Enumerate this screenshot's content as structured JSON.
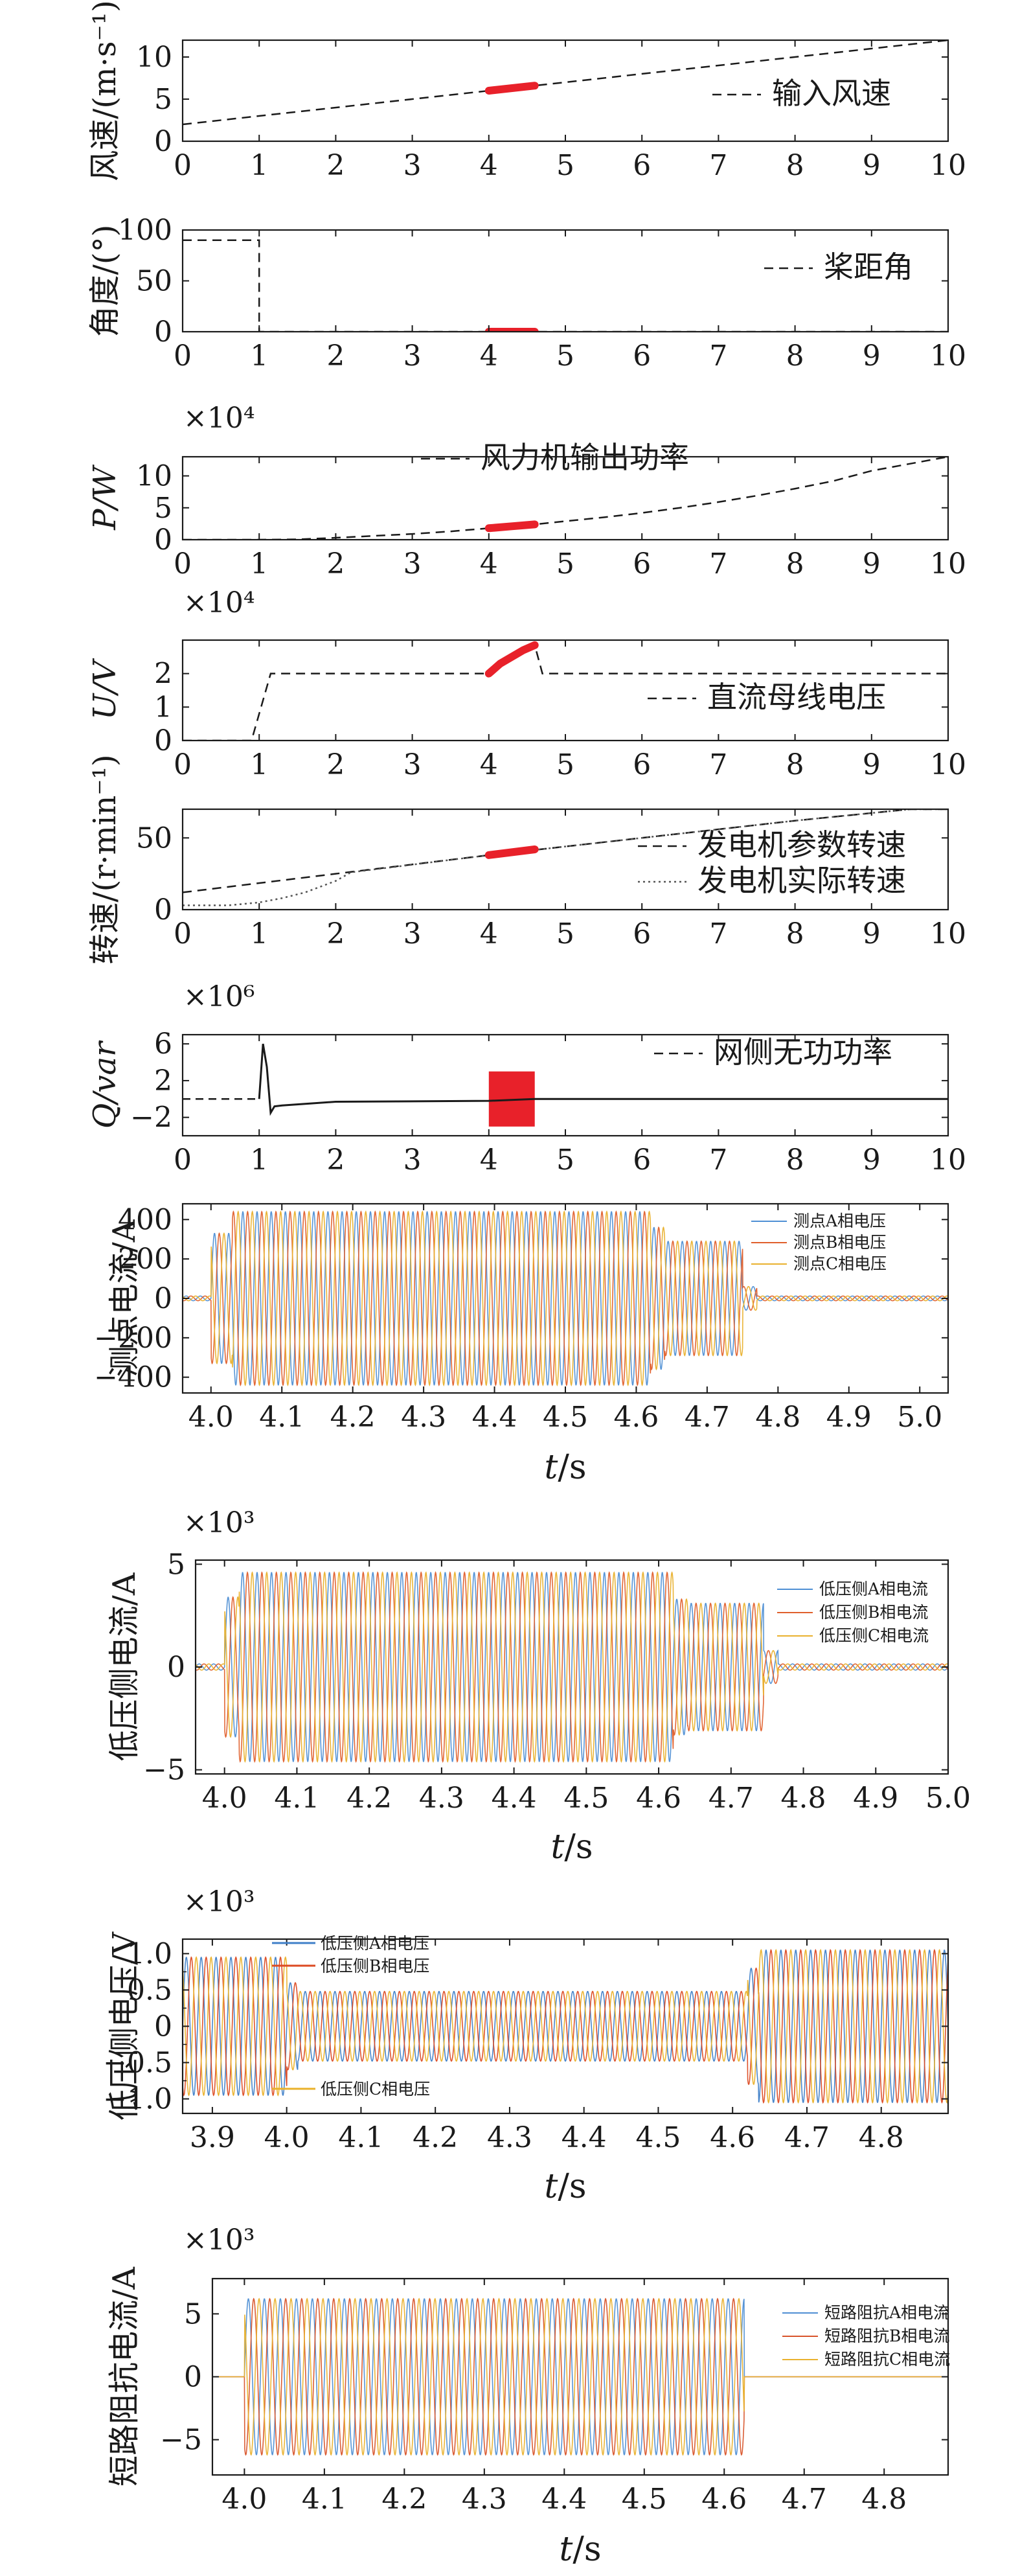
{
  "charts": [
    {
      "id": "wind",
      "type": "line",
      "ylabel": "风速/(m·s⁻¹)",
      "xlim": [
        0,
        10
      ],
      "ylim": [
        0,
        12
      ],
      "xticks": [
        0,
        1,
        2,
        3,
        4,
        5,
        6,
        7,
        8,
        9,
        10
      ],
      "yticks": [
        0,
        5,
        10
      ],
      "xticklabels": [
        "0",
        "1",
        "2",
        "3",
        "4",
        "5",
        "6",
        "7",
        "8",
        "9",
        "10"
      ],
      "yticklabels": [
        "0",
        "5",
        "10"
      ],
      "multiplier": "",
      "series": [
        {
          "name": "输入风速",
          "style": "dashed",
          "color": "#1a1a1a",
          "x": [
            0,
            10
          ],
          "y": [
            2,
            12
          ]
        }
      ],
      "highlight": {
        "color": "#e8212a",
        "x": [
          4,
          4.6
        ],
        "y": [
          6,
          6.6
        ]
      }
    },
    {
      "id": "pitch",
      "type": "line",
      "ylabel": "角度/(°)",
      "xlim": [
        0,
        10
      ],
      "ylim": [
        0,
        100
      ],
      "xticks": [
        0,
        1,
        2,
        3,
        4,
        5,
        6,
        7,
        8,
        9,
        10
      ],
      "yticks": [
        0,
        50,
        100
      ],
      "xticklabels": [
        "0",
        "1",
        "2",
        "3",
        "4",
        "5",
        "6",
        "7",
        "8",
        "9",
        "10"
      ],
      "yticklabels": [
        "0",
        "50",
        "100"
      ],
      "multiplier": "",
      "series": [
        {
          "name": "桨距角",
          "style": "dashed",
          "color": "#1a1a1a",
          "x": [
            0,
            1,
            1,
            10
          ],
          "y": [
            90,
            90,
            0,
            0
          ]
        }
      ],
      "highlight": {
        "color": "#e8212a",
        "x": [
          4,
          4.6
        ],
        "y": [
          0,
          0
        ]
      }
    },
    {
      "id": "power",
      "type": "line",
      "ylabel": "P/W",
      "xlim": [
        0,
        10
      ],
      "ylim": [
        0,
        13
      ],
      "xticks": [
        0,
        1,
        2,
        3,
        4,
        5,
        6,
        7,
        8,
        9,
        10
      ],
      "yticks": [
        0,
        5,
        10
      ],
      "xticklabels": [
        "0",
        "1",
        "2",
        "3",
        "4",
        "5",
        "6",
        "7",
        "8",
        "9",
        "10"
      ],
      "yticklabels": [
        "0",
        "5",
        "10"
      ],
      "multiplier": "×10⁴",
      "series": [
        {
          "name": "风力机输出功率",
          "style": "dashed",
          "color": "#1a1a1a",
          "x": [
            0,
            1,
            1.5,
            2,
            2.5,
            3,
            3.5,
            4,
            4.6,
            5,
            5.5,
            6,
            6.5,
            7,
            7.5,
            8,
            8.5,
            9,
            9.5,
            10
          ],
          "y": [
            0,
            0,
            0.05,
            0.3,
            0.6,
            0.9,
            1.3,
            1.8,
            2.4,
            2.9,
            3.5,
            4.2,
            5.0,
            5.9,
            6.9,
            8.0,
            9.2,
            10.8,
            11.9,
            13
          ]
        }
      ],
      "highlight": {
        "color": "#e8212a",
        "x": [
          4,
          4.3,
          4.6
        ],
        "y": [
          1.8,
          2.1,
          2.4
        ]
      }
    },
    {
      "id": "dcbus",
      "type": "line",
      "ylabel": "U/V",
      "xlim": [
        0,
        10
      ],
      "ylim": [
        0,
        3
      ],
      "xticks": [
        0,
        1,
        2,
        3,
        4,
        5,
        6,
        7,
        8,
        9,
        10
      ],
      "yticks": [
        0,
        1,
        2
      ],
      "xticklabels": [
        "0",
        "1",
        "2",
        "3",
        "4",
        "5",
        "6",
        "7",
        "8",
        "9",
        "10"
      ],
      "yticklabels": [
        "0",
        "1",
        "2"
      ],
      "multiplier": "×10⁴",
      "series": [
        {
          "name": "直流母线电压",
          "style": "dashed",
          "color": "#1a1a1a",
          "x": [
            0,
            0.9,
            1.15,
            4,
            4.6,
            4.7,
            10
          ],
          "y": [
            0,
            0,
            2,
            2,
            2.85,
            2,
            2
          ]
        }
      ],
      "highlight": {
        "color": "#e8212a",
        "x": [
          4,
          4.15,
          4.3,
          4.45,
          4.6
        ],
        "y": [
          2.0,
          2.3,
          2.5,
          2.7,
          2.85
        ]
      }
    },
    {
      "id": "speed",
      "type": "line",
      "ylabel": "转速/(r·min⁻¹)",
      "xlim": [
        0,
        10
      ],
      "ylim": [
        0,
        70
      ],
      "xticks": [
        0,
        1,
        2,
        3,
        4,
        5,
        6,
        7,
        8,
        9,
        10
      ],
      "yticks": [
        0,
        50
      ],
      "xticklabels": [
        "0",
        "1",
        "2",
        "3",
        "4",
        "5",
        "6",
        "7",
        "8",
        "9",
        "10"
      ],
      "yticklabels": [
        "0",
        "50"
      ],
      "multiplier": "",
      "series": [
        {
          "name": "发电机参数转速",
          "style": "dashed",
          "color": "#1a1a1a",
          "x": [
            0,
            2,
            4,
            6,
            8,
            9.5,
            10
          ],
          "y": [
            12,
            25,
            38,
            50,
            62,
            70,
            70
          ]
        },
        {
          "name": "发电机实际转速",
          "style": "dotted",
          "color": "#555555",
          "x": [
            0,
            0.6,
            1,
            1.3,
            1.6,
            2,
            2.2,
            4,
            6,
            8,
            9.5,
            10
          ],
          "y": [
            3,
            3,
            5,
            8,
            12,
            20,
            26,
            38,
            50,
            62,
            70,
            70
          ]
        }
      ],
      "highlight": {
        "color": "#e8212a",
        "x": [
          4,
          4.6
        ],
        "y": [
          38,
          42
        ]
      }
    },
    {
      "id": "reactive",
      "type": "line",
      "ylabel": "Q/var",
      "xlim": [
        0,
        10
      ],
      "ylim": [
        -4,
        7
      ],
      "xticks": [
        0,
        1,
        2,
        3,
        4,
        5,
        6,
        7,
        8,
        9,
        10
      ],
      "yticks": [
        -2,
        2,
        6
      ],
      "xticklabels": [
        "0",
        "1",
        "2",
        "3",
        "4",
        "5",
        "6",
        "7",
        "8",
        "9",
        "10"
      ],
      "yticklabels": [
        "−2",
        "2",
        "6"
      ],
      "multiplier": "×10⁶",
      "series": [
        {
          "name": "网侧无功功率",
          "style": "solid",
          "color": "#1a1a1a",
          "x": [
            1,
            1.05,
            1.1,
            1.15,
            1.2,
            1.3,
            2,
            4,
            4.6,
            10
          ],
          "y": [
            0,
            6,
            3.5,
            -1.5,
            -0.8,
            -0.7,
            -0.3,
            -0.2,
            0,
            0
          ]
        }
      ],
      "zero_segment": {
        "style": "dashed",
        "x": [
          0,
          1
        ],
        "y": [
          0,
          0
        ]
      },
      "band": {
        "color": "#e8212a",
        "x": [
          4,
          4.6
        ],
        "y": [
          -3,
          3
        ]
      }
    },
    {
      "id": "probe",
      "type": "oscillation",
      "ylabel": "测点电流/A",
      "xlabel": "t",
      "xunit": "/s",
      "xlim": [
        3.96,
        5.04
      ],
      "ylim": [
        -480,
        480
      ],
      "xticks": [
        4.0,
        4.1,
        4.2,
        4.3,
        4.4,
        4.5,
        4.6,
        4.7,
        4.8,
        4.9,
        5.0
      ],
      "yticks": [
        -400,
        -200,
        0,
        200,
        400
      ],
      "xticklabels": [
        "4.0",
        "4.1",
        "4.2",
        "4.3",
        "4.4",
        "4.5",
        "4.6",
        "4.7",
        "4.8",
        "4.9",
        "5.0"
      ],
      "yticklabels": [
        "−400",
        "−200",
        "0",
        "200",
        "400"
      ],
      "multiplier": "",
      "freq": 50,
      "segments": [
        {
          "t0": 3.96,
          "t1": 4.0,
          "amp": 12
        },
        {
          "t0": 4.0,
          "t1": 4.03,
          "amp": 330
        },
        {
          "t0": 4.03,
          "t1": 4.62,
          "amp": 440
        },
        {
          "t0": 4.62,
          "t1": 4.64,
          "amp": 360
        },
        {
          "t0": 4.64,
          "t1": 4.75,
          "amp": 290
        },
        {
          "t0": 4.75,
          "t1": 4.77,
          "amp": 60
        },
        {
          "t0": 4.77,
          "t1": 5.04,
          "amp": 12
        }
      ],
      "series": [
        {
          "name": "测点A相电压",
          "color": "#4f8fd4",
          "phase": 0
        },
        {
          "name": "测点B相电压",
          "color": "#e0602c",
          "phase": -120
        },
        {
          "name": "测点C相电压",
          "color": "#e9b12e",
          "phase": 120
        }
      ]
    },
    {
      "id": "lvcurrent",
      "type": "oscillation",
      "ylabel": "低压侧电流/A",
      "xlabel": "t",
      "xunit": "/s",
      "xlim": [
        3.96,
        5.0
      ],
      "ylim": [
        -5200,
        5200
      ],
      "xticks": [
        4.0,
        4.1,
        4.2,
        4.3,
        4.4,
        4.5,
        4.6,
        4.7,
        4.8,
        4.9,
        5.0
      ],
      "yticks": [
        -5000,
        0,
        5000
      ],
      "xticklabels": [
        "4.0",
        "4.1",
        "4.2",
        "4.3",
        "4.4",
        "4.5",
        "4.6",
        "4.7",
        "4.8",
        "4.9",
        "5.0"
      ],
      "yticklabels": [
        "−5",
        "0",
        "5"
      ],
      "multiplier": "×10³",
      "freq": 50,
      "segments": [
        {
          "t0": 3.96,
          "t1": 4.0,
          "amp": 150
        },
        {
          "t0": 4.0,
          "t1": 4.02,
          "amp": 3400
        },
        {
          "t0": 4.02,
          "t1": 4.62,
          "amp": 4600
        },
        {
          "t0": 4.62,
          "t1": 4.64,
          "amp": 3300
        },
        {
          "t0": 4.64,
          "t1": 4.745,
          "amp": 3100
        },
        {
          "t0": 4.745,
          "t1": 4.765,
          "amp": 800
        },
        {
          "t0": 4.765,
          "t1": 5.0,
          "amp": 150
        }
      ],
      "series": [
        {
          "name": "低压侧A相电流",
          "color": "#4f8fd4",
          "phase": 0
        },
        {
          "name": "低压侧B相电流",
          "color": "#e0602c",
          "phase": -120
        },
        {
          "name": "低压侧C相电流",
          "color": "#e9b12e",
          "phase": 120
        }
      ]
    },
    {
      "id": "lvvoltage",
      "type": "oscillation",
      "ylabel": "低压侧电压/V",
      "xlabel": "t",
      "xunit": "/s",
      "xlim": [
        3.86,
        4.89
      ],
      "ylim": [
        -1200,
        1200
      ],
      "xticks": [
        3.9,
        4.0,
        4.1,
        4.2,
        4.3,
        4.4,
        4.5,
        4.6,
        4.7,
        4.8
      ],
      "yticks": [
        -1000,
        -500,
        0,
        500,
        1000
      ],
      "xticklabels": [
        "3.9",
        "4.0",
        "4.1",
        "4.2",
        "4.3",
        "4.4",
        "4.5",
        "4.6",
        "4.7",
        "4.8"
      ],
      "yticklabels": [
        "−1.0",
        "−0.5",
        "0",
        "0.5",
        "1.0"
      ],
      "yminor": [
        -750,
        -250,
        250,
        750
      ],
      "multiplier": "×10³",
      "freq": 50,
      "segments": [
        {
          "t0": 3.86,
          "t1": 4.0,
          "amp": 950
        },
        {
          "t0": 4.0,
          "t1": 4.015,
          "amp": 600
        },
        {
          "t0": 4.015,
          "t1": 4.62,
          "amp": 480
        },
        {
          "t0": 4.62,
          "t1": 4.635,
          "amp": 800
        },
        {
          "t0": 4.635,
          "t1": 4.89,
          "amp": 1050
        }
      ],
      "series": [
        {
          "name": "低压侧A相电压",
          "color": "#3f7fc8",
          "phase": 0
        },
        {
          "name": "低压侧B相电压",
          "color": "#dc4a22",
          "phase": -120
        },
        {
          "name": "低压侧C相电压",
          "color": "#eab12a",
          "phase": 120
        }
      ]
    },
    {
      "id": "shortcircuit",
      "type": "oscillation",
      "ylabel": "短路阻抗电流/A",
      "xlabel": "t",
      "xunit": "/s",
      "xlim": [
        3.96,
        4.88
      ],
      "ylim": [
        -7800,
        7800
      ],
      "xticks": [
        4.0,
        4.1,
        4.2,
        4.3,
        4.4,
        4.5,
        4.6,
        4.7,
        4.8
      ],
      "yticks": [
        -5000,
        0,
        5000
      ],
      "xticklabels": [
        "4.0",
        "4.1",
        "4.2",
        "4.3",
        "4.4",
        "4.5",
        "4.6",
        "4.7",
        "4.8"
      ],
      "yticklabels": [
        "−5",
        "0",
        "5"
      ],
      "multiplier": "×10³",
      "freq": 50,
      "segments": [
        {
          "t0": 3.96,
          "t1": 4.0,
          "amp": 0
        },
        {
          "t0": 4.0,
          "t1": 4.625,
          "amp": 6200
        },
        {
          "t0": 4.625,
          "t1": 4.88,
          "amp": 0
        }
      ],
      "series": [
        {
          "name": "短路阻抗A相电流",
          "color": "#4f8fd4",
          "phase": 0
        },
        {
          "name": "短路阻抗B相电流",
          "color": "#d8542a",
          "phase": -120
        },
        {
          "name": "短路阻抗C相电流",
          "color": "#e9b12e",
          "phase": 120
        }
      ]
    }
  ]
}
